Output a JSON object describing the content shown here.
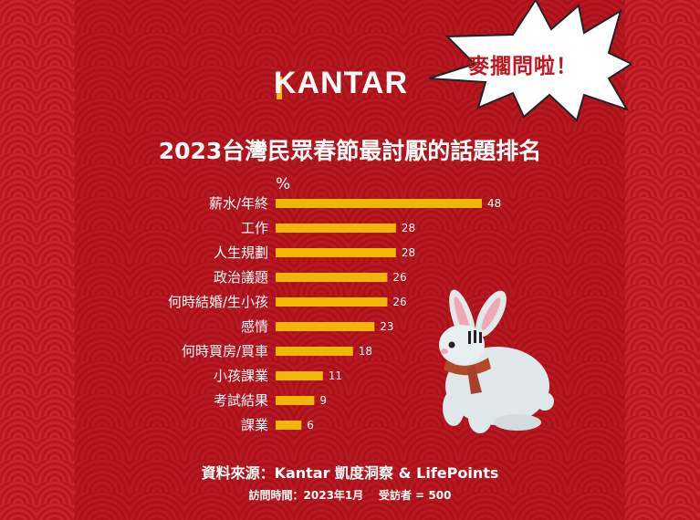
{
  "logo": "KANTAR",
  "burst_text": "麥擱問啦！",
  "title": "2023台灣民眾春節最討厭的話題排名",
  "source": "資料來源：Kantar 凱度洞察 & LifePoints",
  "meta": "訪問時間：2023年1月    受訪者 = 500",
  "colors": {
    "background": "#b5121b",
    "bar": "#f2b705",
    "text": "#ffffff"
  },
  "chart_data": {
    "type": "bar",
    "orientation": "horizontal",
    "unit_label": "%",
    "categories": [
      "薪水/年終",
      "工作",
      "人生規劃",
      "政治議題",
      "何時結婚/生小孩",
      "感情",
      "何時買房/買車",
      "小孩課業",
      "考試結果",
      "課業"
    ],
    "values": [
      48,
      28,
      28,
      26,
      26,
      23,
      18,
      11,
      9,
      6
    ],
    "grid": false,
    "legend": "none"
  }
}
